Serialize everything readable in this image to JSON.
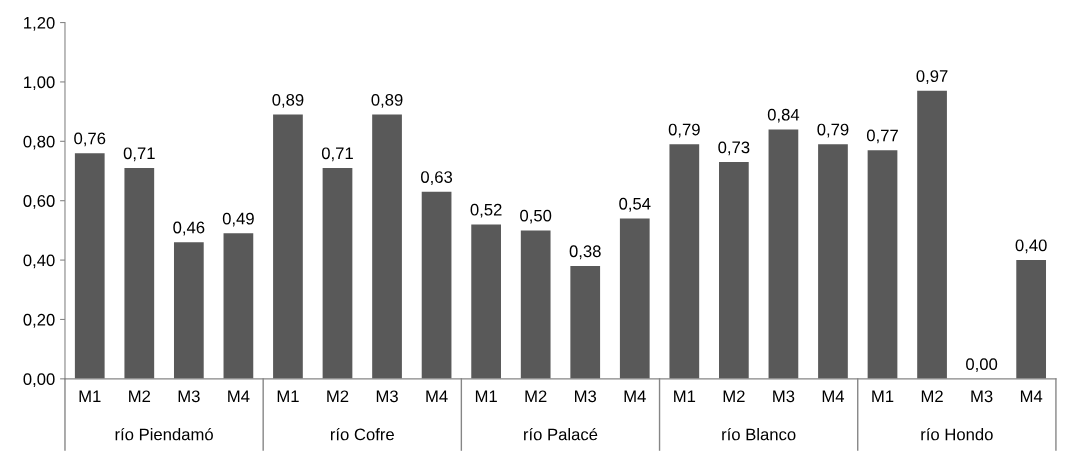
{
  "chart_data": {
    "type": "bar",
    "categories": [
      "M1",
      "M2",
      "M3",
      "M4",
      "M1",
      "M2",
      "M3",
      "M4",
      "M1",
      "M2",
      "M3",
      "M4",
      "M1",
      "M2",
      "M3",
      "M4",
      "M1",
      "M2",
      "M3",
      "M4"
    ],
    "values": [
      0.76,
      0.71,
      0.46,
      0.49,
      0.89,
      0.71,
      0.89,
      0.63,
      0.52,
      0.5,
      0.38,
      0.54,
      0.79,
      0.73,
      0.84,
      0.79,
      0.77,
      0.97,
      0.0,
      0.4
    ],
    "value_labels": [
      "0,76",
      "0,71",
      "0,46",
      "0,49",
      "0,89",
      "0,71",
      "0,89",
      "0,63",
      "0,52",
      "0,50",
      "0,38",
      "0,54",
      "0,79",
      "0,73",
      "0,84",
      "0,79",
      "0,77",
      "0,97",
      "0,00",
      "0,40"
    ],
    "color": "#595959",
    "annotations": [
      "río Piendamó",
      "río Cofre",
      "río Palacé",
      "río Blanco",
      "río Hondo"
    ],
    "ylim": [
      0,
      1.2
    ],
    "yticks": [
      {
        "value": 0,
        "label": "0,00"
      },
      {
        "value": 0.2,
        "label": "0,20"
      },
      {
        "value": 0.4,
        "label": "0,40"
      },
      {
        "value": 0.6,
        "label": "0,60"
      },
      {
        "value": 0.8,
        "label": "0,80"
      },
      {
        "value": 1.0,
        "label": "1,00"
      },
      {
        "value": 1.2,
        "label": "1,20"
      }
    ],
    "grid": false
  }
}
